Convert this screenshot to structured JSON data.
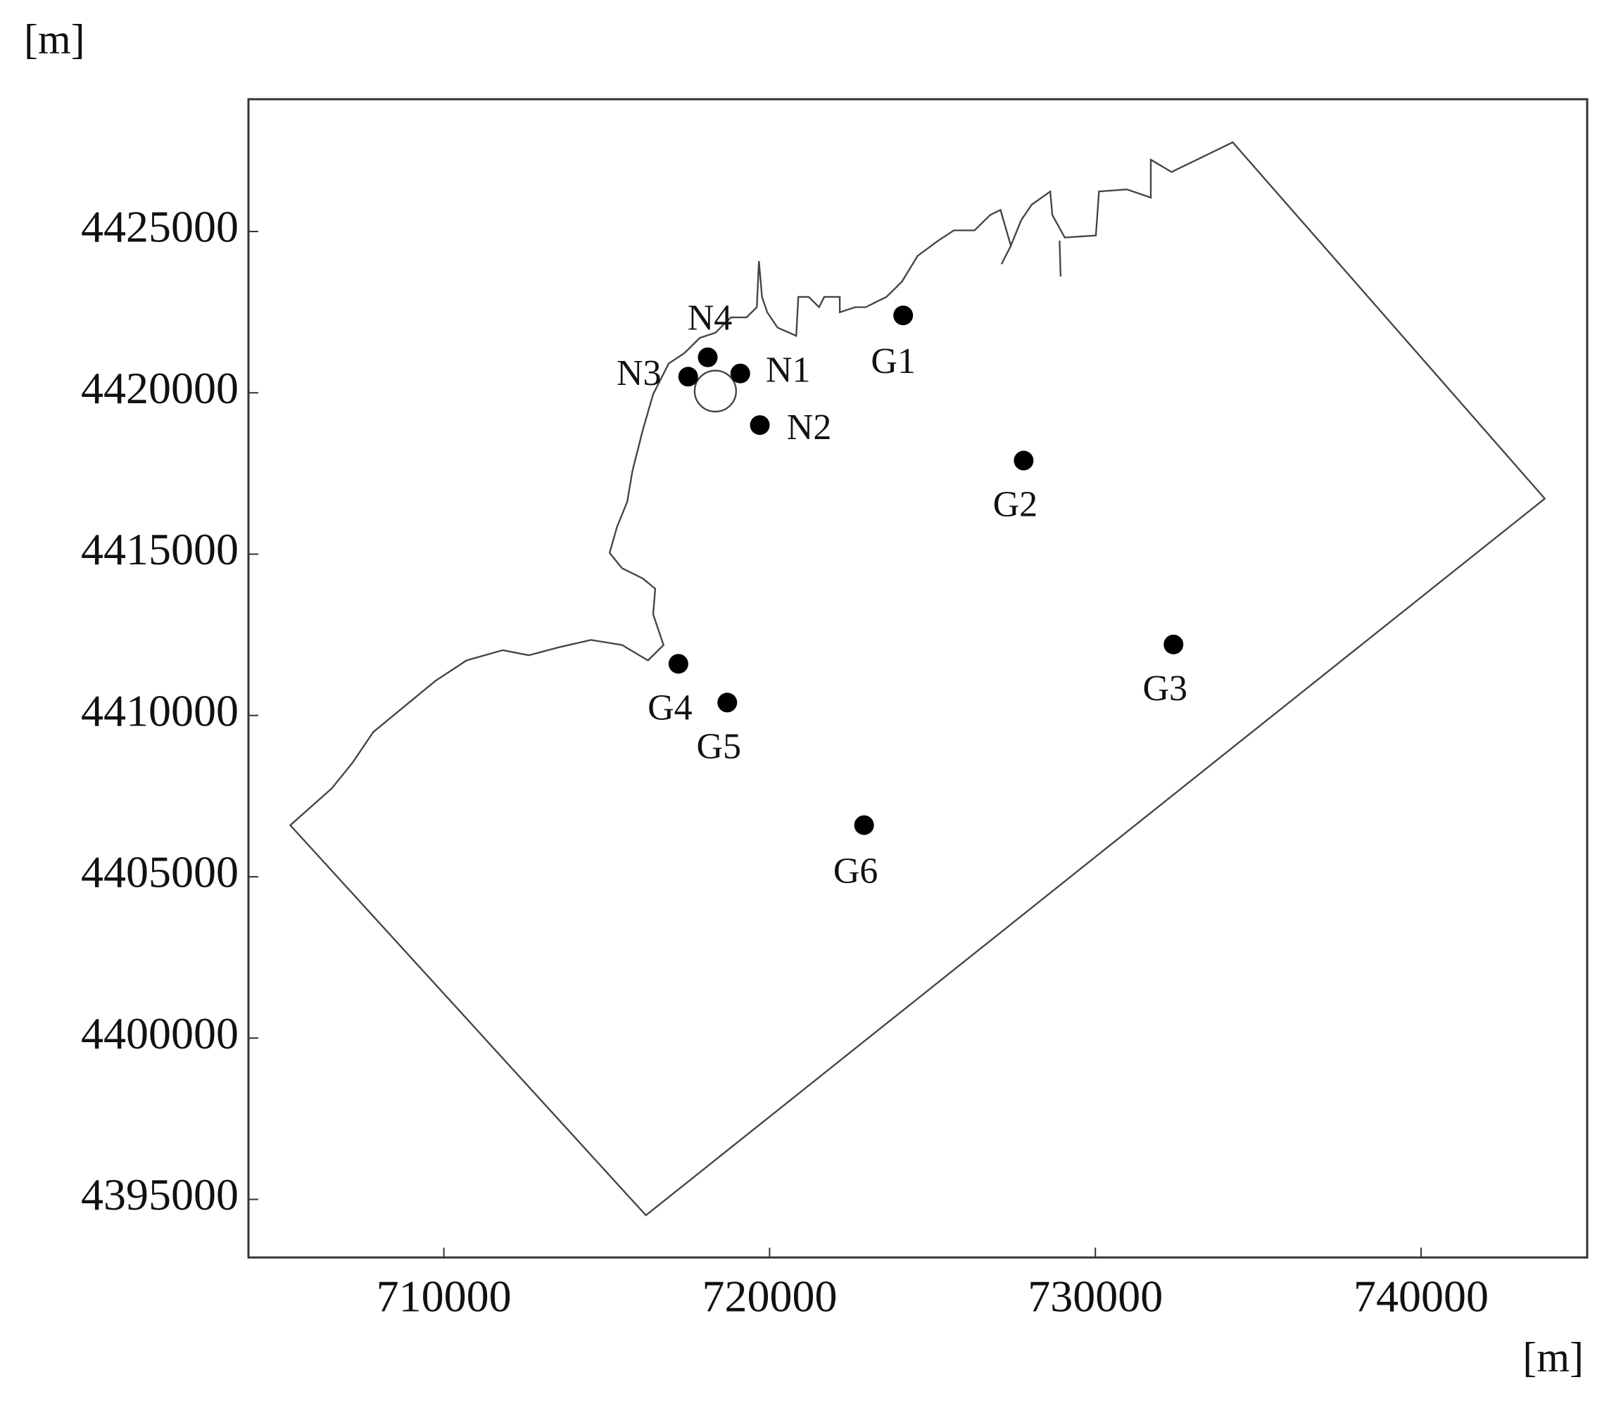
{
  "chart_data": {
    "type": "scatter",
    "x_label": "[m]",
    "y_label": "[m]",
    "labels": [
      "G1",
      "G2",
      "G3",
      "G4",
      "G5",
      "G6",
      "N1",
      "N2",
      "N3",
      "N4"
    ],
    "x": [
      724100,
      727800,
      732400,
      717200,
      718700,
      722900,
      719100,
      719700,
      717500,
      718100
    ],
    "y": [
      4422400,
      4417900,
      4412200,
      4411600,
      4410400,
      4406600,
      4420600,
      4419000,
      4420500,
      4421100
    ],
    "color": "#000000",
    "xlim": [
      704000,
      745100
    ],
    "xticks": [
      710000,
      720000,
      730000,
      740000
    ],
    "ylim": [
      4393200,
      4429100
    ],
    "yticks": [
      4395000,
      4400000,
      4405000,
      4410000,
      4415000,
      4420000,
      4425000
    ]
  }
}
